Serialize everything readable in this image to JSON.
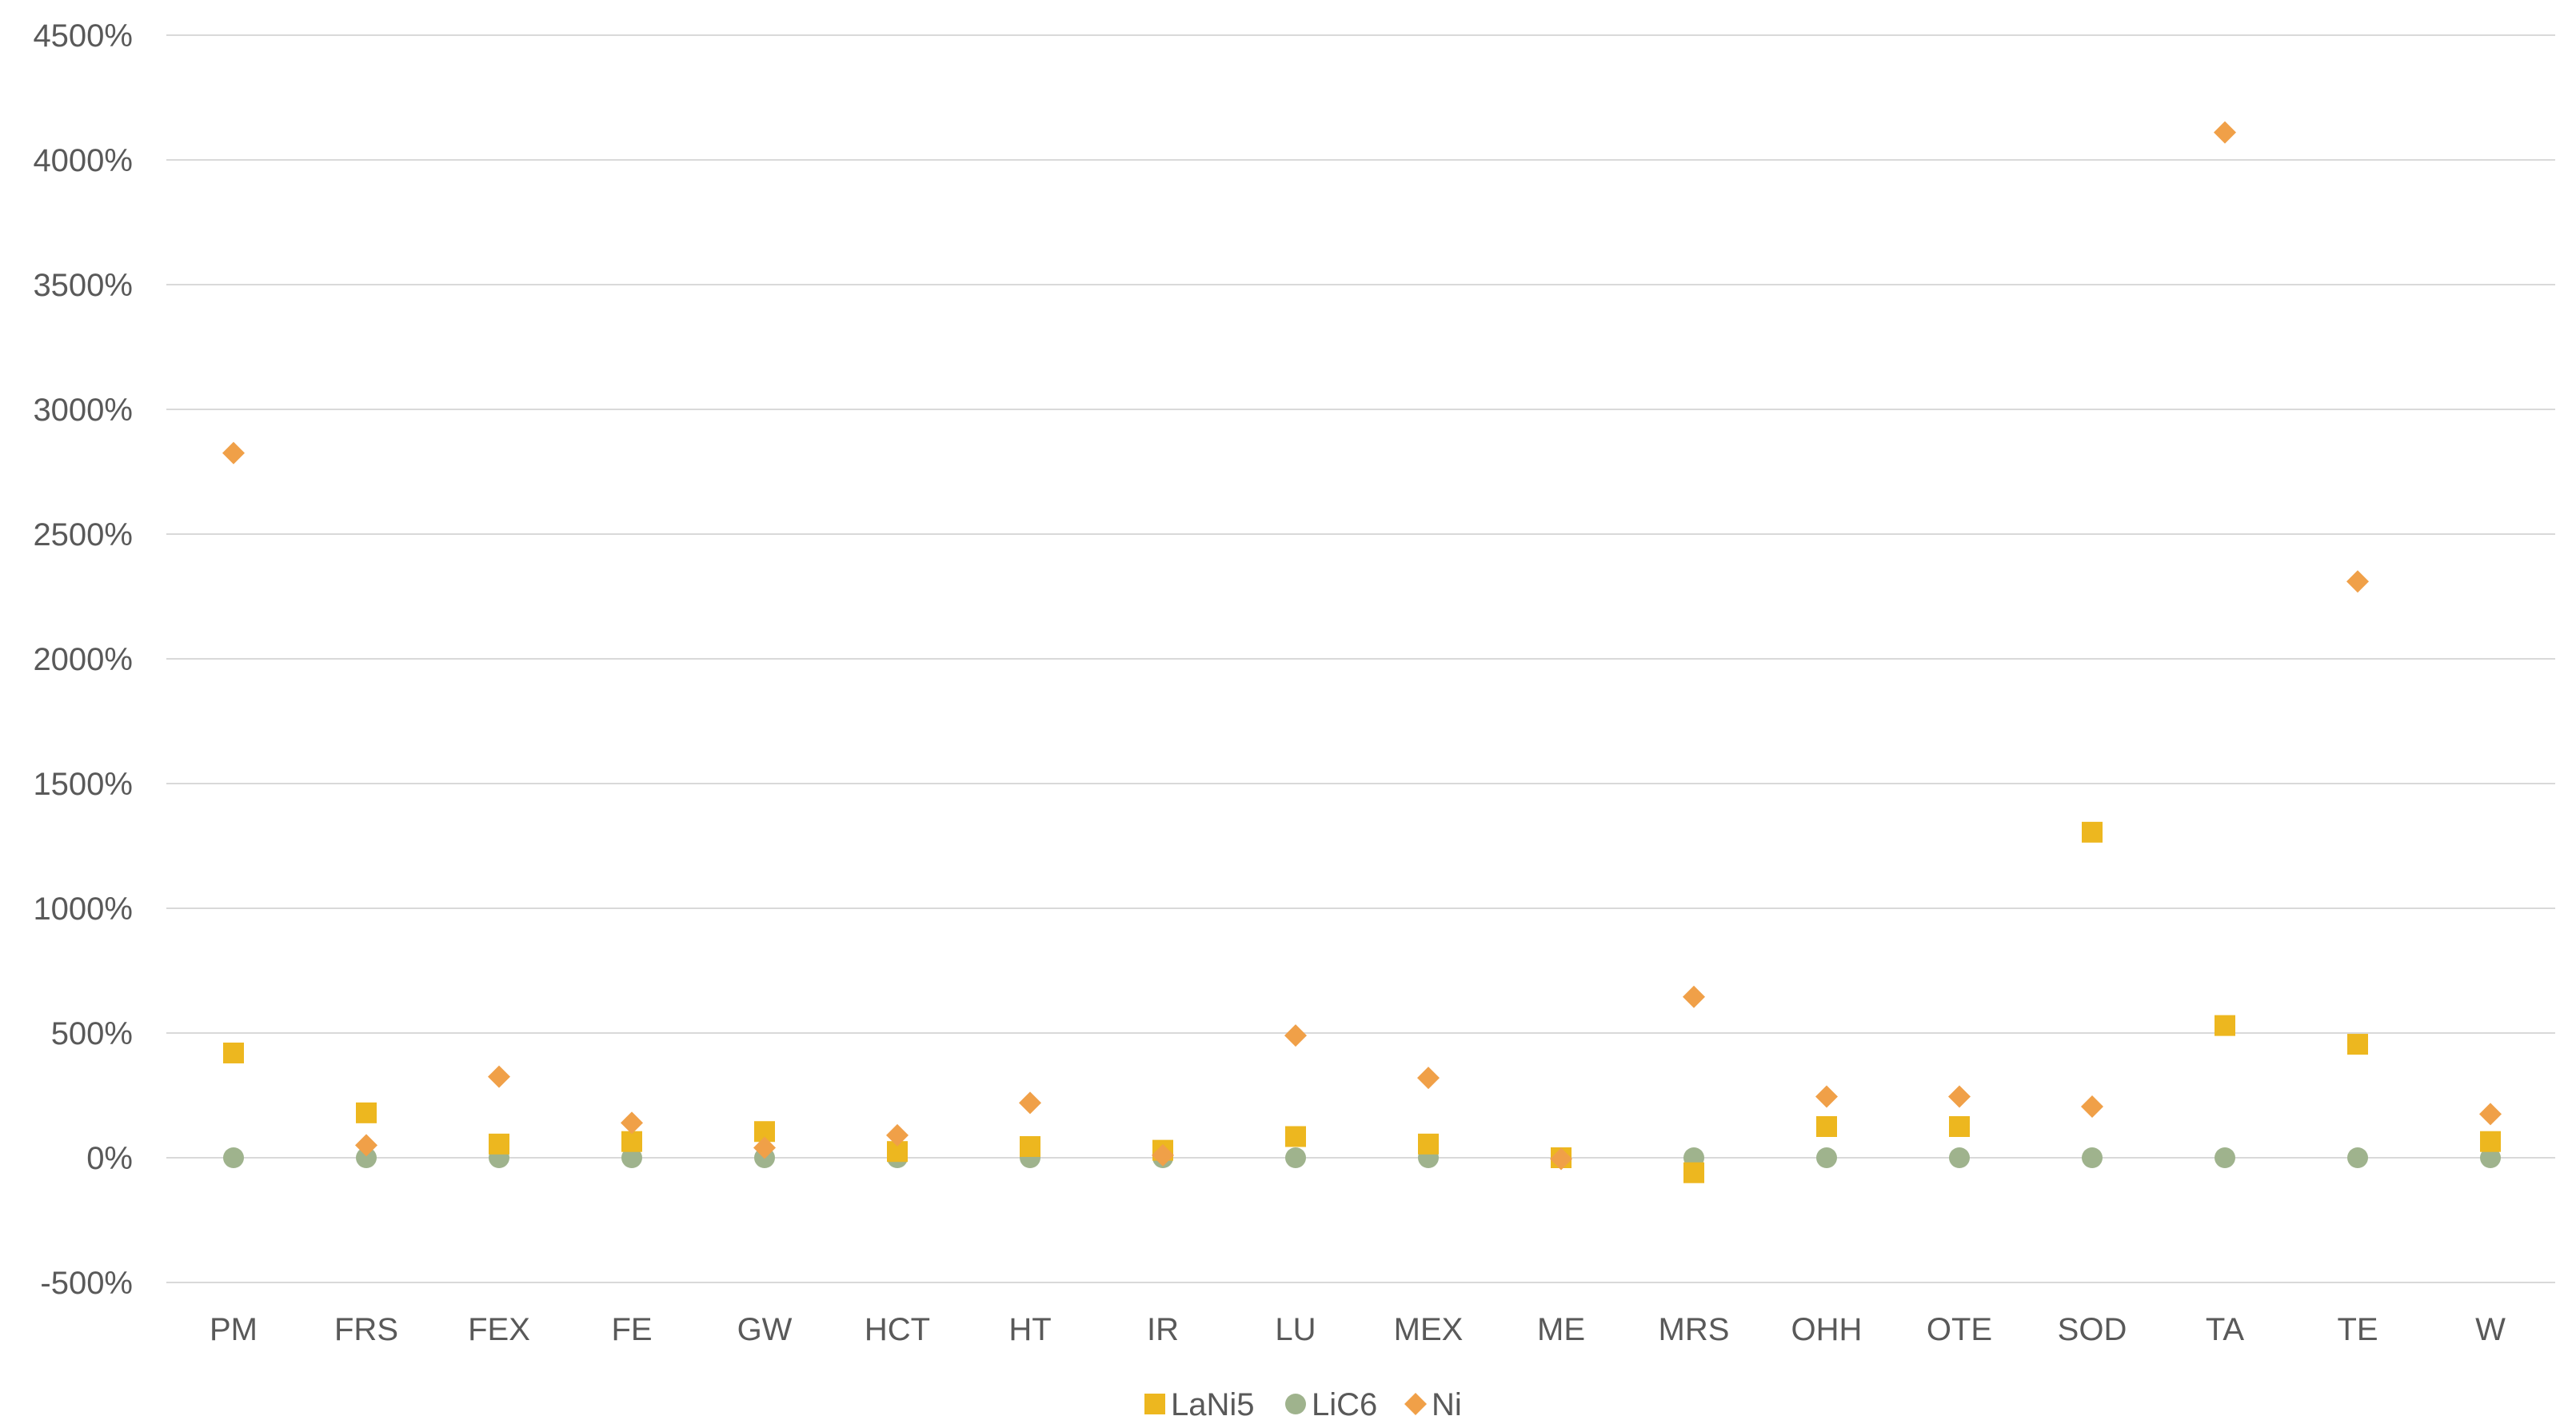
{
  "chart_data": {
    "type": "scatter",
    "title": "",
    "xlabel": "",
    "ylabel": "",
    "categories": [
      "PM",
      "FRS",
      "FEX",
      "FE",
      "GW",
      "HCT",
      "HT",
      "IR",
      "LU",
      "MEX",
      "ME",
      "MRS",
      "OHH",
      "OTE",
      "SOD",
      "TA",
      "TE",
      "W"
    ],
    "y_tick_labels": [
      "-500%",
      "0%",
      "500%",
      "1000%",
      "1500%",
      "2000%",
      "2500%",
      "3000%",
      "3500%",
      "4000%",
      "4500%"
    ],
    "ylim": [
      -500,
      4500
    ],
    "y_unit": "%",
    "grid": "horizontal",
    "legend_position": "bottom",
    "series": [
      {
        "name": "LaNi5",
        "marker": "square",
        "color": "#EDB71F",
        "values": [
          420,
          180,
          55,
          65,
          105,
          25,
          45,
          30,
          85,
          55,
          0,
          -60,
          125,
          125,
          1305,
          530,
          455,
          65
        ]
      },
      {
        "name": "LiC6",
        "marker": "circle",
        "color": "#9FB38D",
        "values": [
          0,
          0,
          0,
          0,
          0,
          0,
          0,
          0,
          0,
          0,
          0,
          0,
          0,
          0,
          0,
          0,
          0,
          0
        ]
      },
      {
        "name": "Ni",
        "marker": "diamond",
        "color": "#F0A048",
        "values": [
          2825,
          50,
          325,
          140,
          40,
          90,
          220,
          10,
          490,
          320,
          -5,
          645,
          245,
          245,
          205,
          4110,
          2310,
          175
        ]
      }
    ]
  }
}
